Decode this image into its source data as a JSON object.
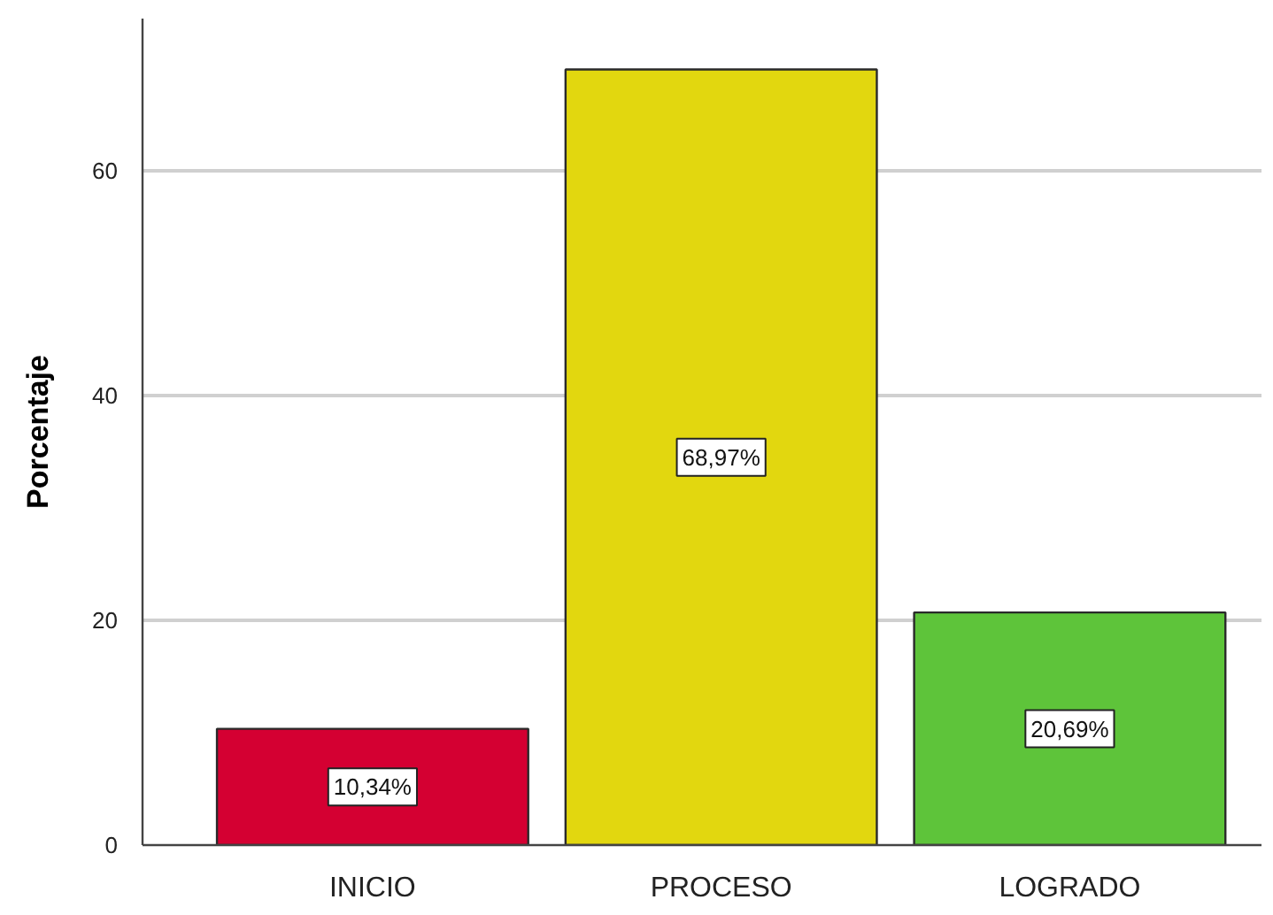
{
  "chart_data": {
    "type": "bar",
    "ylabel": "Porcentaje",
    "categories": [
      "INICIO",
      "PROCESO",
      "LOGRADO"
    ],
    "values": [
      10.34,
      68.97,
      20.69
    ],
    "colors": [
      "#d40032",
      "#e2d70f",
      "#5ec43a"
    ],
    "value_labels": [
      "10,34%",
      "68,97%",
      "20,69%"
    ],
    "ylim": [
      0,
      73.5
    ],
    "yticks": [
      0,
      20,
      40,
      60
    ],
    "grid": "y"
  }
}
